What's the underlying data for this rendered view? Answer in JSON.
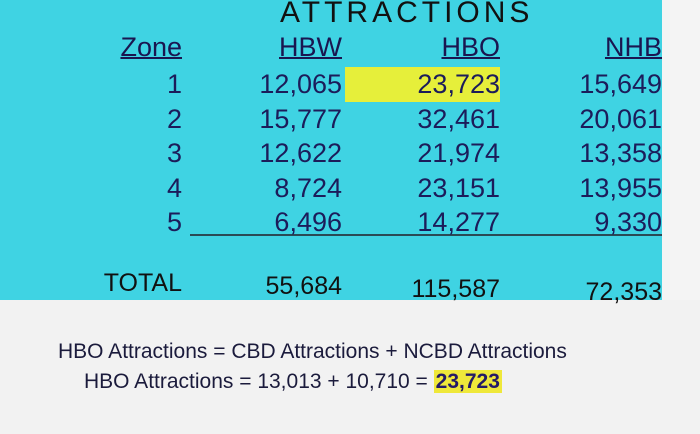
{
  "table": {
    "title": "ATTRACTIONS",
    "header": [
      "Zone",
      "HBW",
      "HBO",
      "NHB"
    ],
    "rows": [
      [
        "1",
        "12,065",
        "23,723",
        "15,649"
      ],
      [
        "2",
        "15,777",
        "32,461",
        "20,061"
      ],
      [
        "3",
        "12,622",
        "21,974",
        "13,358"
      ],
      [
        "4",
        "8,724",
        "23,151",
        "13,955"
      ],
      [
        "5",
        "6,496",
        "14,277",
        "9,330"
      ]
    ],
    "total": [
      "TOTAL",
      "55,684",
      "115,587",
      "72,353"
    ]
  },
  "equations": {
    "line1": "HBO Attractions = CBD Attractions + NCBD Attractions",
    "line2": {
      "lhs": "HBO Attractions = 13,013 + 10,710 =",
      "result": "23,723"
    }
  }
}
